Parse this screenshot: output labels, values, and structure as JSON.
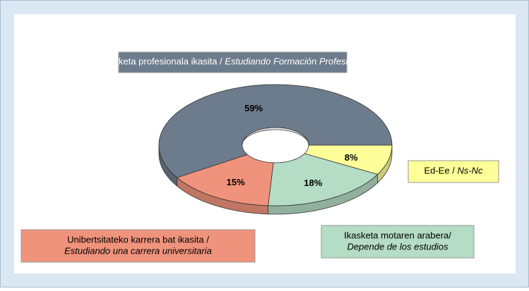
{
  "chart_data": {
    "type": "pie",
    "donut": true,
    "three_d": true,
    "categories": [
      [
        "Ed-Ee /",
        "Ns-Nc"
      ],
      [
        "Ikasketa motaren arabera/",
        "Depende de los estudios"
      ],
      [
        "Unibertsitateko karrera bat ikasita /",
        "Estudiando una carrera universitaria"
      ],
      [
        "Heziketa profesionala ikasita /",
        "Estudiando Formación Profesional"
      ]
    ],
    "values": [
      8,
      18,
      15,
      59
    ],
    "value_labels": [
      "8%",
      "18%",
      "15%",
      "59%"
    ],
    "colors": [
      "#ffff99",
      "#b5dcc4",
      "#f0937c",
      "#6d7c8c"
    ]
  }
}
